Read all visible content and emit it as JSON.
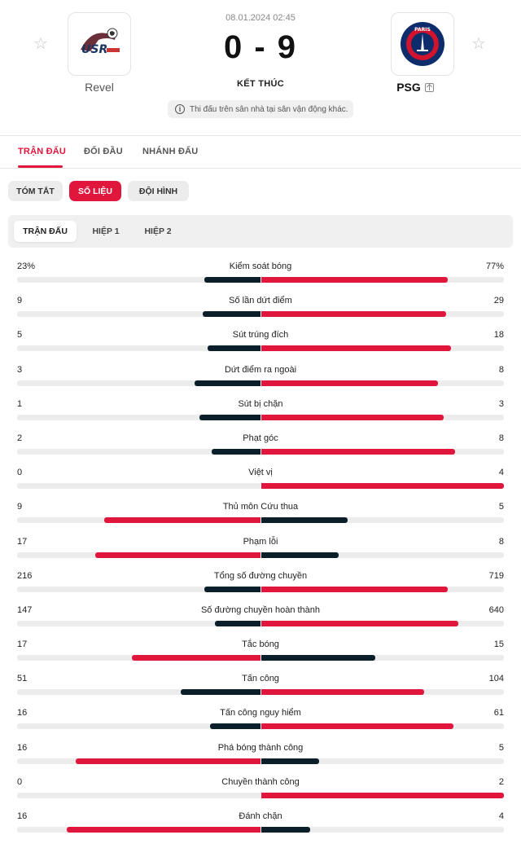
{
  "colors": {
    "accent": "#e0163d",
    "dark": "#0b1f2a",
    "track": "#ececec"
  },
  "match": {
    "datetime": "08.01.2024 02:45",
    "score": "0 - 9",
    "status": "KẾT THÚC",
    "note": "Thi đấu trên sân nhà tại sân vận động khác.",
    "home": {
      "name": "Revel",
      "logo_text": "USR"
    },
    "away": {
      "name": "PSG",
      "logo_text": "PARIS"
    }
  },
  "tabs": [
    "TRẬN ĐẤU",
    "ĐỐI ĐẦU",
    "NHÁNH ĐẤU"
  ],
  "subtabs": [
    "TÓM TẮT",
    "SỐ LIỆU",
    "ĐỘI HÌNH"
  ],
  "periods": [
    "TRẬN ĐẤU",
    "HIỆP 1",
    "HIỆP 2"
  ],
  "stats": [
    {
      "label": "Kiểm soát bóng",
      "home": "23%",
      "away": "77%"
    },
    {
      "label": "Số lần dứt điểm",
      "home": "9",
      "away": "29"
    },
    {
      "label": "Sút trúng đích",
      "home": "5",
      "away": "18"
    },
    {
      "label": "Dứt điểm ra ngoài",
      "home": "3",
      "away": "8"
    },
    {
      "label": "Sút bị chặn",
      "home": "1",
      "away": "3"
    },
    {
      "label": "Phạt góc",
      "home": "2",
      "away": "8"
    },
    {
      "label": "Việt vị",
      "home": "0",
      "away": "4"
    },
    {
      "label": "Thủ môn Cứu thua",
      "home": "9",
      "away": "5"
    },
    {
      "label": "Phạm lỗi",
      "home": "17",
      "away": "8"
    },
    {
      "label": "Tổng số đường chuyền",
      "home": "216",
      "away": "719"
    },
    {
      "label": "Số đường chuyền hoàn thành",
      "home": "147",
      "away": "640"
    },
    {
      "label": "Tắc bóng",
      "home": "17",
      "away": "15"
    },
    {
      "label": "Tấn công",
      "home": "51",
      "away": "104"
    },
    {
      "label": "Tấn công nguy hiểm",
      "home": "16",
      "away": "61"
    },
    {
      "label": "Phá bóng thành công",
      "home": "16",
      "away": "5"
    },
    {
      "label": "Chuyền thành công",
      "home": "0",
      "away": "2"
    },
    {
      "label": "Đánh chặn",
      "home": "16",
      "away": "4"
    }
  ]
}
